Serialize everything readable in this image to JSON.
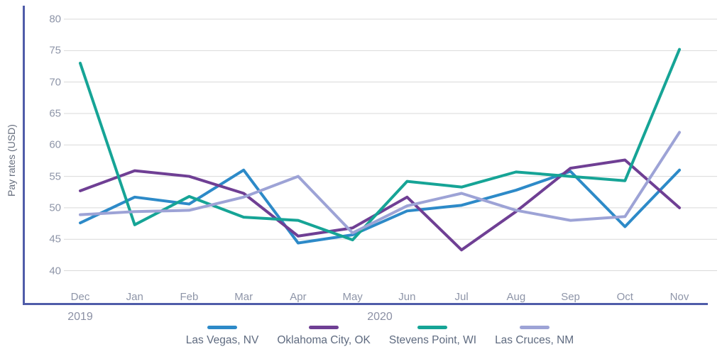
{
  "chart_data": {
    "type": "line",
    "title": "",
    "ylabel": "Pay rates (USD)",
    "xlabel": "",
    "categories": [
      "Dec",
      "Jan",
      "Feb",
      "Mar",
      "Apr",
      "May",
      "Jun",
      "Jul",
      "Aug",
      "Sep",
      "Oct",
      "Nov"
    ],
    "year_labels": [
      {
        "text": "2019",
        "month_index": 0
      },
      {
        "text": "2020",
        "month_index": 5.5
      }
    ],
    "ylim": [
      40,
      80
    ],
    "ytick_step": 5,
    "grid": true,
    "legend_position": "bottom",
    "series": [
      {
        "name": "Las Vegas, NV",
        "color": "#2d8ac8",
        "values": [
          47.6,
          51.7,
          50.6,
          56.0,
          44.4,
          45.7,
          49.5,
          50.4,
          52.8,
          55.8,
          47.0,
          56.0
        ]
      },
      {
        "name": "Oklahoma City, OK",
        "color": "#6f3f94",
        "values": [
          52.7,
          55.9,
          55.0,
          52.3,
          45.5,
          46.8,
          51.7,
          43.3,
          49.4,
          56.3,
          57.6,
          50.0
        ]
      },
      {
        "name": "Stevens Point, WI",
        "color": "#16a496",
        "values": [
          73.0,
          47.3,
          51.8,
          48.5,
          48.0,
          44.9,
          54.2,
          53.3,
          55.7,
          55.0,
          54.3,
          75.2
        ]
      },
      {
        "name": "Las Cruces, NM",
        "color": "#9da3d6",
        "values": [
          48.9,
          49.4,
          49.6,
          51.7,
          55.0,
          46.0,
          50.3,
          52.3,
          49.6,
          48.0,
          48.6,
          62.0
        ]
      }
    ]
  },
  "colors": {
    "axis": "#4f5ca9",
    "gridline": "#d9d9d9",
    "tick_text": "#8e95a8",
    "legend_text": "#5f6b80"
  }
}
